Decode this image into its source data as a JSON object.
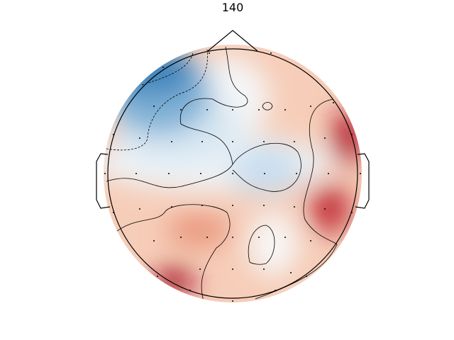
{
  "chart_data": {
    "type": "topomap",
    "title": "140"
  }
}
